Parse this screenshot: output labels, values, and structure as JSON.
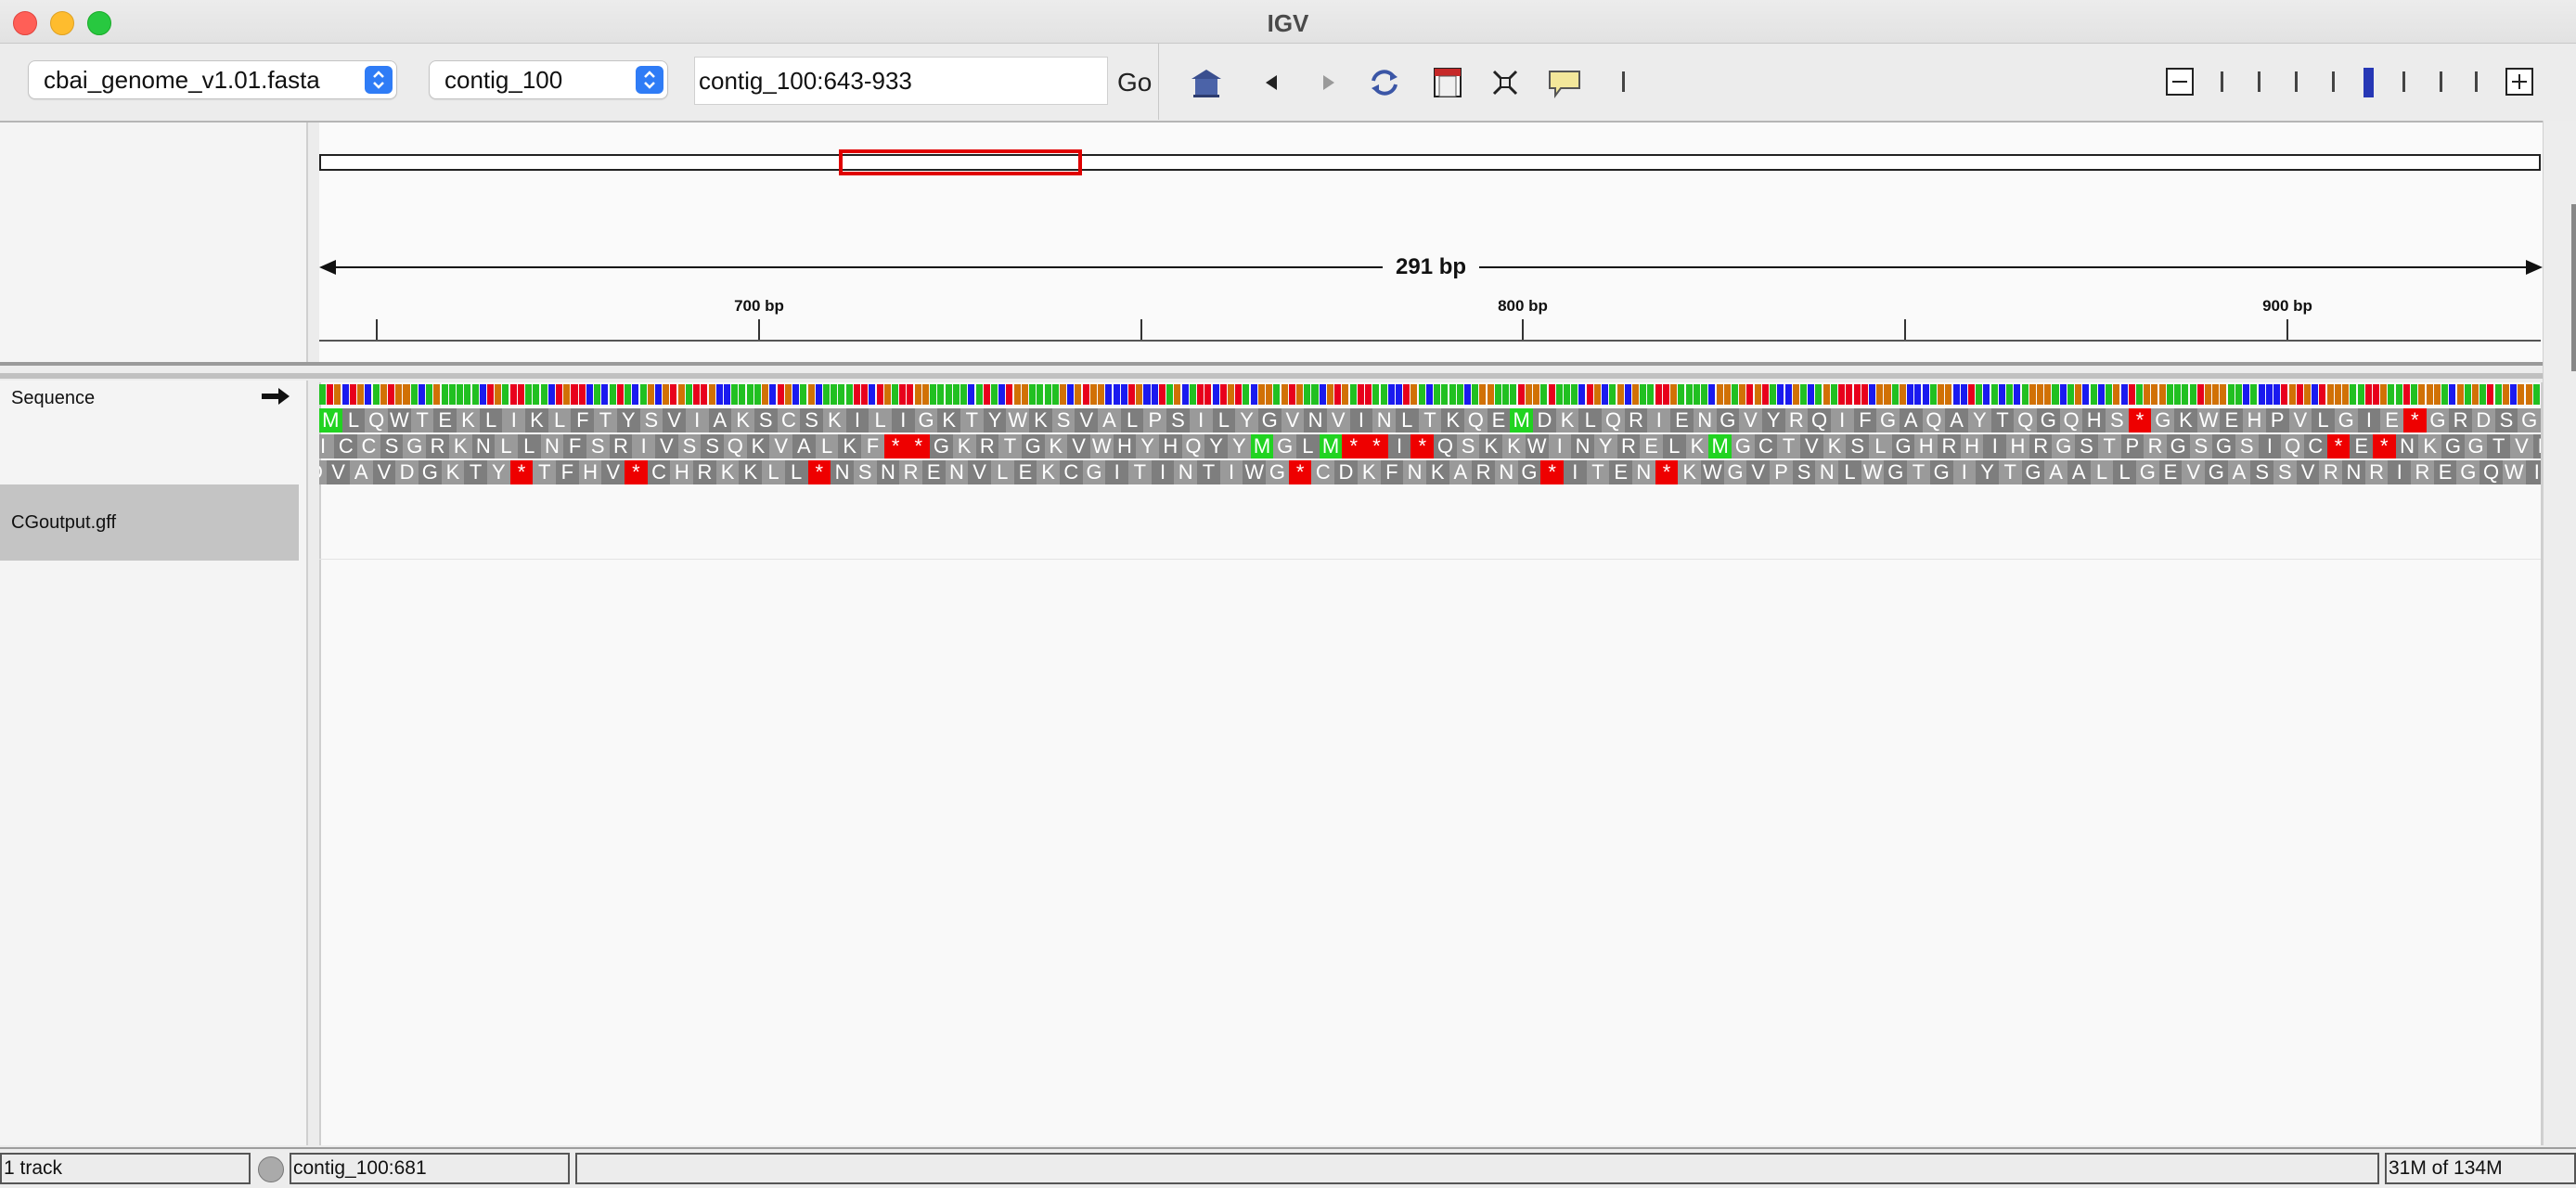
{
  "window": {
    "title": "IGV"
  },
  "toolbar": {
    "genome": "cbai_genome_v1.01.fasta",
    "chromosome": "contig_100",
    "locus": "contig_100:643-933",
    "go_label": "Go",
    "tools": [
      "home-icon",
      "back-icon",
      "forward-icon",
      "refresh-icon",
      "region-of-interest-icon",
      "fit-to-window-icon",
      "popup-info-icon"
    ]
  },
  "ruler": {
    "span_label": "291 bp",
    "ticks": [
      {
        "label": "700 bp"
      },
      {
        "label": "800 bp"
      },
      {
        "label": "900 bp"
      }
    ]
  },
  "tracks": {
    "sequence_name": "Sequence",
    "gff_name": "CGoutput.gff"
  },
  "sequence": {
    "frame1": "MLQWTEKLIKLFTYSVIAKSCSKILIGKTYWKSVALPSILYGVNVINLTKQEMDKLQRIENGVYRQIFGAQAYTQGQHS*GKWEHPVLGIE*GRDSG",
    "frame2": "ICCSGRKNLLNFSRIVSSQKVALKF**GKRTGKVWHYHQYYMGLM**I*QSKKWINYRELKMGCTVKSLGHRHIHRGSTPRGSGSIQC*E*NKGGTVE",
    "frame3": "DVAVDGKTY*TFHV*CHRKKLL*NSNRENVLEKCGITINTIWG*CDKFNKARNG*ITEN*KWGVPSNLWGTGIYTGAALLGEVGASSVRNRIREGQWI",
    "base_colors": {
      "A": "#21c021",
      "C": "#1a1aef",
      "G": "#d17105",
      "T": "#e8001c"
    }
  },
  "status": {
    "track_count": "1 track",
    "position": "contig_100:681",
    "message": "",
    "memory": "31M of 134M"
  }
}
